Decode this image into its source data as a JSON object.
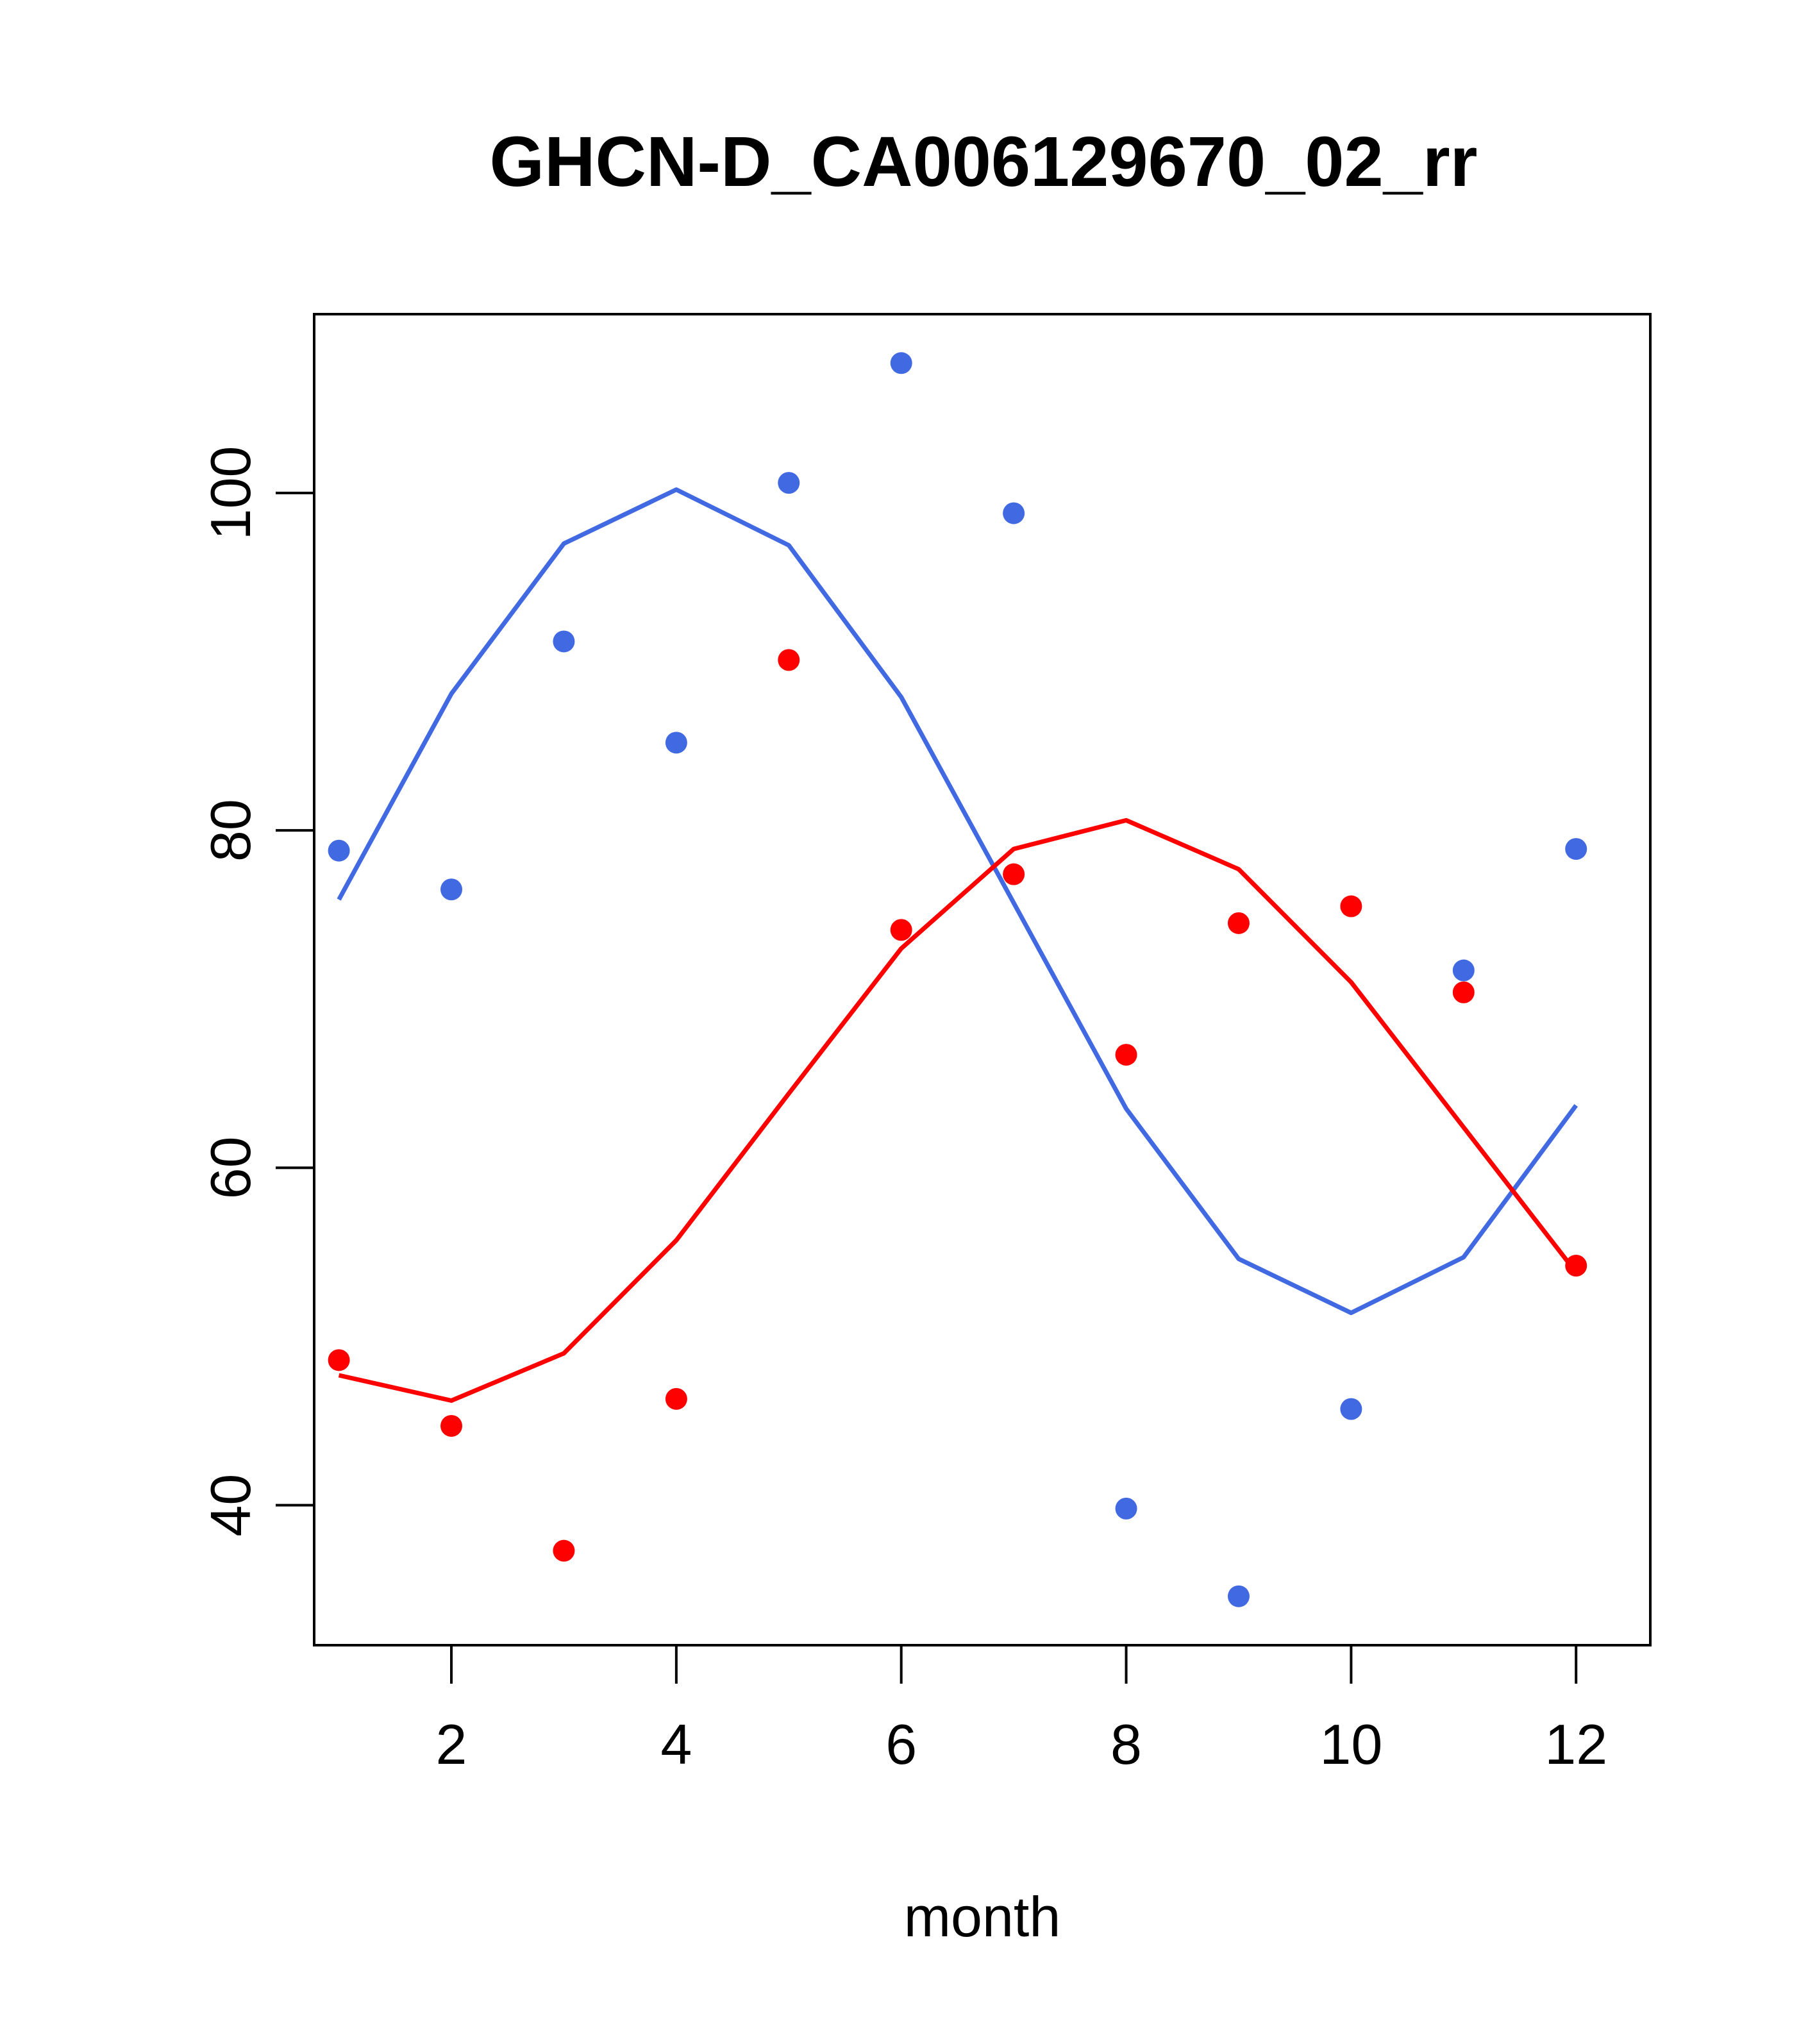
{
  "chart_data": {
    "type": "scatter",
    "title": "GHCN-D_CA006129670_02_rr",
    "xlabel": "month",
    "ylabel": "",
    "xlim": [
      0.78,
      12.66
    ],
    "ylim": [
      31.7,
      110.6
    ],
    "x_ticks": [
      2,
      4,
      6,
      8,
      10,
      12
    ],
    "y_ticks": [
      40,
      60,
      80,
      100
    ],
    "grid": false,
    "legend": "none",
    "series": [
      {
        "color": "#4169E1",
        "x": [
          1,
          2,
          3,
          4,
          5,
          6,
          7,
          8,
          9,
          10,
          11,
          12
        ],
        "points": [
          78.8,
          76.5,
          91.2,
          85.2,
          100.6,
          107.7,
          98.8,
          39.8,
          34.6,
          45.7,
          71.7,
          78.9
        ],
        "fit": [
          75.9,
          88.1,
          97.0,
          100.2,
          96.9,
          87.9,
          75.7,
          63.5,
          54.6,
          51.4,
          54.7,
          63.7
        ]
      },
      {
        "color": "#FF0000",
        "x": [
          1,
          2,
          3,
          4,
          5,
          6,
          7,
          8,
          9,
          10,
          11,
          12
        ],
        "points": [
          48.6,
          44.7,
          37.3,
          46.3,
          90.1,
          74.1,
          77.4,
          66.7,
          74.5,
          75.5,
          70.4,
          54.2
        ],
        "fit": [
          47.7,
          46.2,
          49.0,
          55.7,
          64.4,
          73.0,
          78.9,
          80.6,
          77.7,
          71.0,
          62.4,
          53.8
        ]
      }
    ]
  }
}
